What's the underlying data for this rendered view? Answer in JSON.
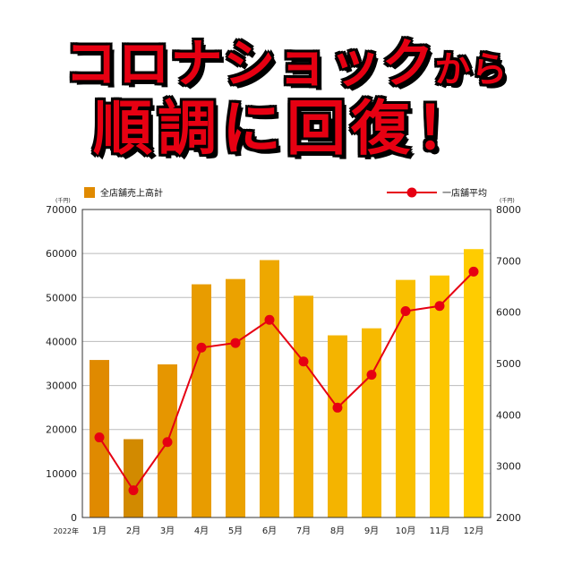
{
  "headline": {
    "line1_main": "コロナショック",
    "line1_small": "から",
    "line2": "順調に回復！"
  },
  "chart_data": {
    "type": "bar",
    "categories": [
      "1月",
      "2月",
      "3月",
      "4月",
      "5月",
      "6月",
      "7月",
      "8月",
      "9月",
      "10月",
      "11月",
      "12月"
    ],
    "year_label": "2022年",
    "series": [
      {
        "name": "全店舗売上高計",
        "kind": "bar",
        "axis": "left",
        "values": [
          35800,
          17800,
          34800,
          53000,
          54200,
          58500,
          50400,
          41400,
          43000,
          54000,
          55000,
          61000
        ]
      },
      {
        "name": "一店舗平均",
        "kind": "line",
        "axis": "right",
        "values": [
          3560,
          2530,
          3470,
          5310,
          5400,
          5850,
          5040,
          4140,
          4780,
          6020,
          6120,
          6790
        ]
      }
    ],
    "left_axis": {
      "unit": "(千円)",
      "ylim": [
        0,
        70000
      ],
      "ticks": [
        0,
        10000,
        20000,
        30000,
        40000,
        50000,
        60000,
        70000
      ]
    },
    "right_axis": {
      "unit": "(千円)",
      "ylim": [
        2000,
        8000
      ],
      "ticks": [
        2000,
        3000,
        4000,
        5000,
        6000,
        7000,
        8000
      ]
    },
    "grid": "horizontal",
    "legend": "top",
    "colors": {
      "bar_start": "#e08a00",
      "bar_end": "#ffcc00",
      "bar_feb": "#d28a00",
      "line": "#e60012"
    }
  }
}
